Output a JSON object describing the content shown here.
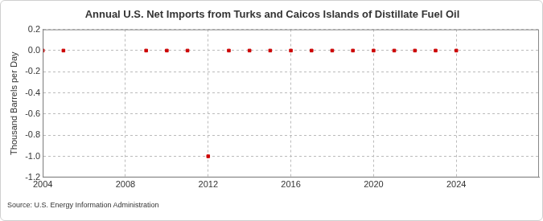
{
  "chart_data": {
    "type": "scatter",
    "title": "Annual U.S. Net Imports from Turks and Caicos Islands of Distillate Fuel Oil",
    "y_label": "Thousand Barrels per Day",
    "source": "Source: U.S. Energy Information Administration",
    "x": [
      2004,
      2005,
      2009,
      2010,
      2011,
      2012,
      2013,
      2014,
      2015,
      2016,
      2017,
      2018,
      2019,
      2020,
      2021,
      2022,
      2023,
      2024
    ],
    "values": [
      0,
      0,
      0,
      0,
      0,
      -1,
      0,
      0,
      0,
      0,
      0,
      0,
      0,
      0,
      0,
      0,
      0,
      0
    ],
    "color": "#cc0000",
    "marker": "square",
    "xlim": [
      2004,
      2028
    ],
    "xticks": [
      2004,
      2008,
      2012,
      2016,
      2020,
      2024
    ],
    "ylim": [
      -1.2,
      0.2
    ],
    "yticks": [
      0.2,
      {
        "value": 0,
        "label": "0.0"
      },
      -0.2,
      -0.4,
      -0.6,
      -0.8,
      {
        "value": -1,
        "label": "-1.0"
      },
      -1.2
    ],
    "grid": true
  }
}
